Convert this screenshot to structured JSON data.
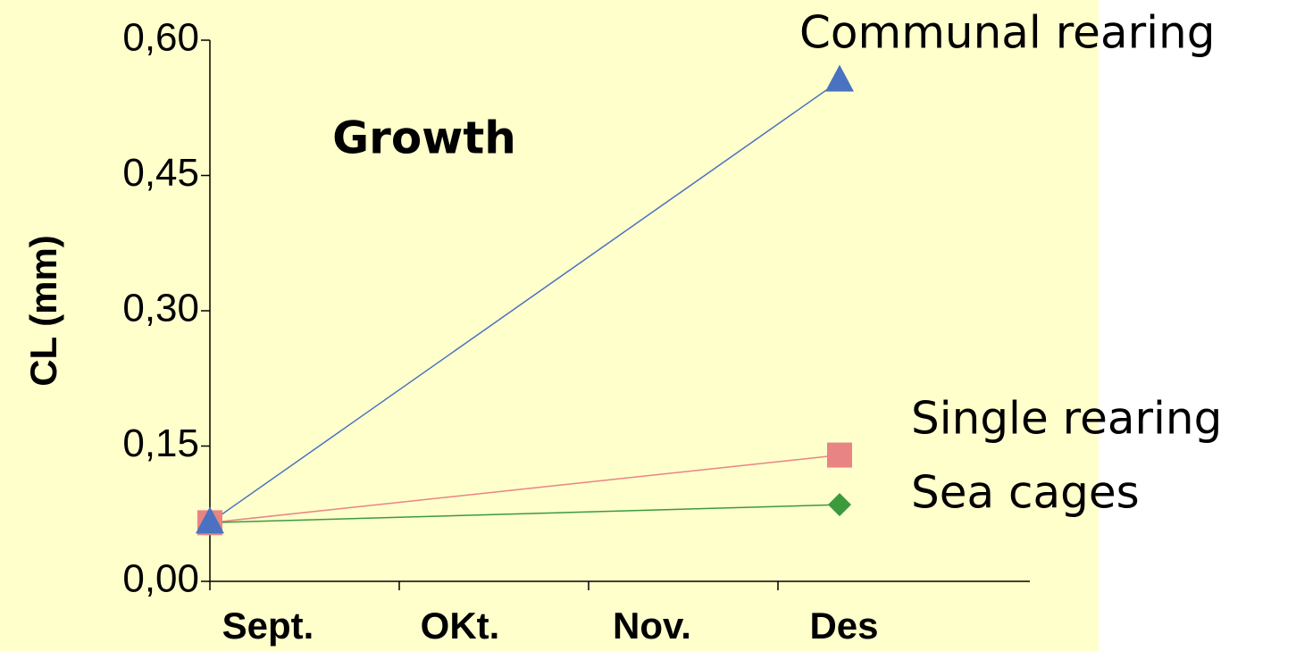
{
  "chart_data": {
    "type": "line",
    "annotations": [
      "Growth"
    ],
    "y_label": "CL (mm)",
    "categories": [
      "Sept.",
      "OKt.",
      "Nov.",
      "Des"
    ],
    "series": [
      {
        "name": "Communal rearing",
        "color": "#4a72c0",
        "marker": "triangle",
        "x": [
          "Sept.",
          "Des"
        ],
        "values": [
          0.065,
          0.555
        ]
      },
      {
        "name": "Single rearing",
        "color": "#e88484",
        "marker": "square",
        "x": [
          "Sept.",
          "Des"
        ],
        "values": [
          0.065,
          0.14
        ]
      },
      {
        "name": "Sea cages",
        "color": "#3c9a3c",
        "marker": "diamond",
        "x": [
          "Sept.",
          "Des"
        ],
        "values": [
          0.065,
          0.085
        ]
      }
    ],
    "ylim": [
      0,
      0.6
    ],
    "yticks": [
      {
        "value": 0,
        "label": "0,00"
      },
      {
        "value": 0.15,
        "label": "0,15"
      },
      {
        "value": 0.3,
        "label": "0,30"
      },
      {
        "value": 0.45,
        "label": "0,45"
      },
      {
        "value": 0.6,
        "label": "0,60"
      }
    ]
  }
}
